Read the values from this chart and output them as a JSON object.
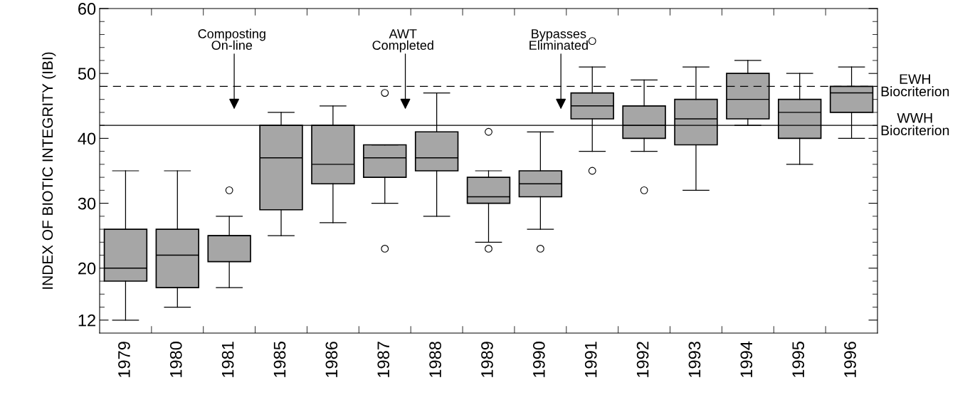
{
  "chart_data": {
    "type": "box",
    "ylabel": "INDEX OF BIOTIC INTEGRITY (IBI)",
    "categories": [
      "1979",
      "1980",
      "1981",
      "1985",
      "1986",
      "1987",
      "1988",
      "1989",
      "1990",
      "1991",
      "1992",
      "1993",
      "1994",
      "1995",
      "1996"
    ],
    "color": "#a6a6a6",
    "boxes": [
      {
        "low": 12,
        "q1": 18,
        "median": 20,
        "q3": 26,
        "high": 35
      },
      {
        "low": 14,
        "q1": 17,
        "median": 22,
        "q3": 26,
        "high": 35
      },
      {
        "low": 17,
        "q1": 21,
        "median": 25,
        "q3": 25,
        "high": 28,
        "outliers": [
          32
        ]
      },
      {
        "low": 25,
        "q1": 29,
        "median": 37,
        "q3": 42,
        "high": 44
      },
      {
        "low": 27,
        "q1": 33,
        "median": 36,
        "q3": 42,
        "high": 45
      },
      {
        "low": 30,
        "q1": 34,
        "median": 37,
        "q3": 39,
        "high": 39,
        "outliers": [
          47,
          23
        ]
      },
      {
        "low": 28,
        "q1": 35,
        "median": 37,
        "q3": 41,
        "high": 47
      },
      {
        "low": 24,
        "q1": 30,
        "median": 31,
        "q3": 34,
        "high": 35,
        "outliers": [
          41,
          23
        ]
      },
      {
        "low": 26,
        "q1": 31,
        "median": 33,
        "q3": 35,
        "high": 41,
        "outliers": [
          23
        ]
      },
      {
        "low": 38,
        "q1": 43,
        "median": 45,
        "q3": 47,
        "high": 51,
        "outliers": [
          55,
          35
        ]
      },
      {
        "low": 38,
        "q1": 40,
        "median": 42,
        "q3": 45,
        "high": 49,
        "outliers": [
          32
        ]
      },
      {
        "low": 32,
        "q1": 39,
        "median": 43,
        "q3": 46,
        "high": 51
      },
      {
        "low": 42,
        "q1": 43,
        "median": 46,
        "q3": 50,
        "high": 52
      },
      {
        "low": 36,
        "q1": 40,
        "median": 44,
        "q3": 46,
        "high": 50
      },
      {
        "low": 40,
        "q1": 44,
        "median": 47,
        "q3": 48,
        "high": 51
      }
    ],
    "ylim": [
      10,
      60
    ],
    "yticks": [
      {
        "value": 12,
        "label": "12"
      },
      {
        "value": 14,
        "label": null
      },
      {
        "value": 16,
        "label": null
      },
      {
        "value": 18,
        "label": null
      },
      20,
      {
        "value": 22,
        "label": null
      },
      {
        "value": 24,
        "label": null
      },
      {
        "value": 26,
        "label": null
      },
      {
        "value": 28,
        "label": null
      },
      30,
      {
        "value": 32,
        "label": null
      },
      {
        "value": 34,
        "label": null
      },
      {
        "value": 36,
        "label": null
      },
      {
        "value": 38,
        "label": null
      },
      40,
      {
        "value": 42,
        "label": null
      },
      {
        "value": 44,
        "label": null
      },
      {
        "value": 46,
        "label": null
      },
      {
        "value": 48,
        "label": null
      },
      50,
      {
        "value": 52,
        "label": null
      },
      {
        "value": 54,
        "label": null
      },
      {
        "value": 56,
        "label": null
      },
      {
        "value": 58,
        "label": null
      },
      60
    ],
    "ref_lines": [
      {
        "axis": "y",
        "value": 48,
        "label": "EWH\nBiocriterion",
        "color": "#000000",
        "line_style": "dashed"
      },
      {
        "axis": "y",
        "value": 42,
        "label": "WWH\nBiocriterion",
        "color": "#000000",
        "line_style": "solid"
      }
    ],
    "annotations": [
      "Composting\nOn-line",
      "AWT\nCompleted",
      "Bypasses\nEliminated"
    ],
    "grid": false,
    "legend": false
  }
}
